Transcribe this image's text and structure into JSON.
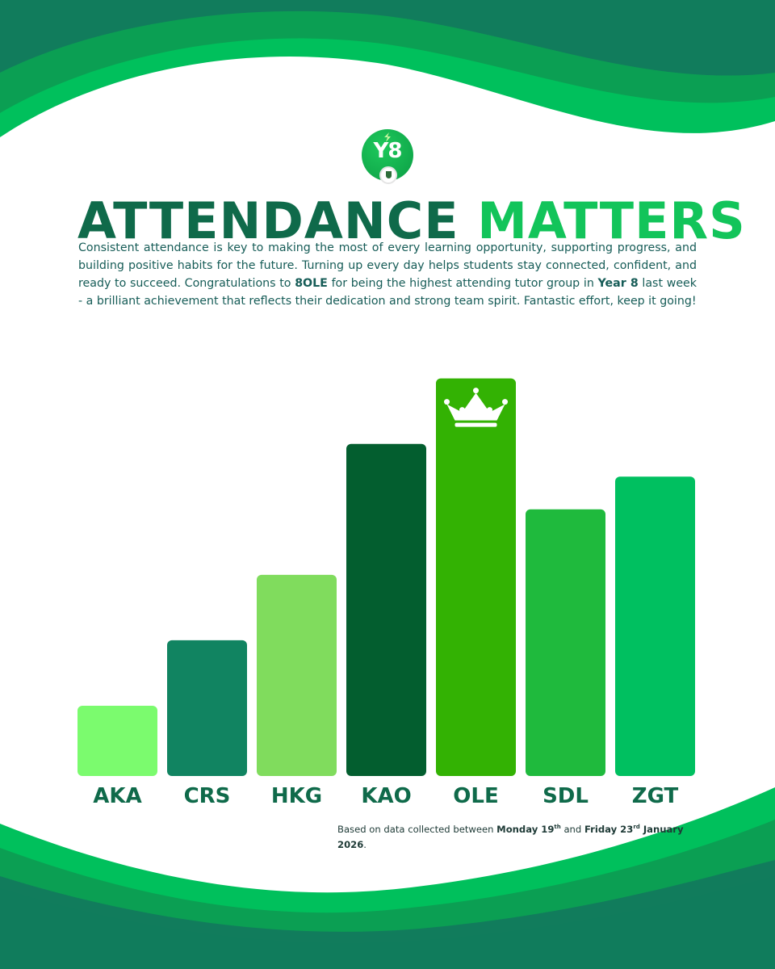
{
  "logo": {
    "text": "Y8"
  },
  "title": {
    "part1": "ATTENDANCE",
    "part2": "MATTERS"
  },
  "intro": {
    "text_a": "Consistent attendance is key to making the most of every learning opportunity, supporting progress, and building positive habits for the future. Turning up every day helps students stay connected, confident, and ready to succeed. Congratulations to ",
    "group": "8OLE",
    "text_b": " for being the highest attending tutor group in ",
    "year": "Year 8",
    "text_c": " last week - a brilliant achievement that reflects their dedication and strong team spirit. Fantastic effort, keep it going!"
  },
  "chart_data": {
    "type": "bar",
    "categories": [
      "AKA",
      "CRS",
      "HKG",
      "KAO",
      "OLE",
      "SDL",
      "ZGT"
    ],
    "values": [
      1,
      2,
      3,
      5,
      6,
      4,
      4.5
    ],
    "ylim": [
      0,
      6.6
    ],
    "bar_colors": [
      "#7bfb6e",
      "#118461",
      "#80dc5d",
      "#035e2f",
      "#33b203",
      "#1fba3d",
      "#00c060"
    ],
    "highlight": "OLE",
    "highlight_icon": "crown-icon",
    "grid": false,
    "legend": "none"
  },
  "footnote": {
    "text_a": "Based on data collected between ",
    "start_day": "Monday 19",
    "start_suffix": "th",
    "text_b": " and ",
    "end_day": "Friday 23",
    "end_suffix": "rd",
    "end_rest": "January 2026",
    "text_c": "."
  },
  "colors": {
    "dark_green": "#0f6a4a",
    "bright_green": "#12c45a",
    "wave_dark": "#117c5c",
    "wave_mid": "#0b9f53",
    "wave_light": "#00c05c"
  }
}
